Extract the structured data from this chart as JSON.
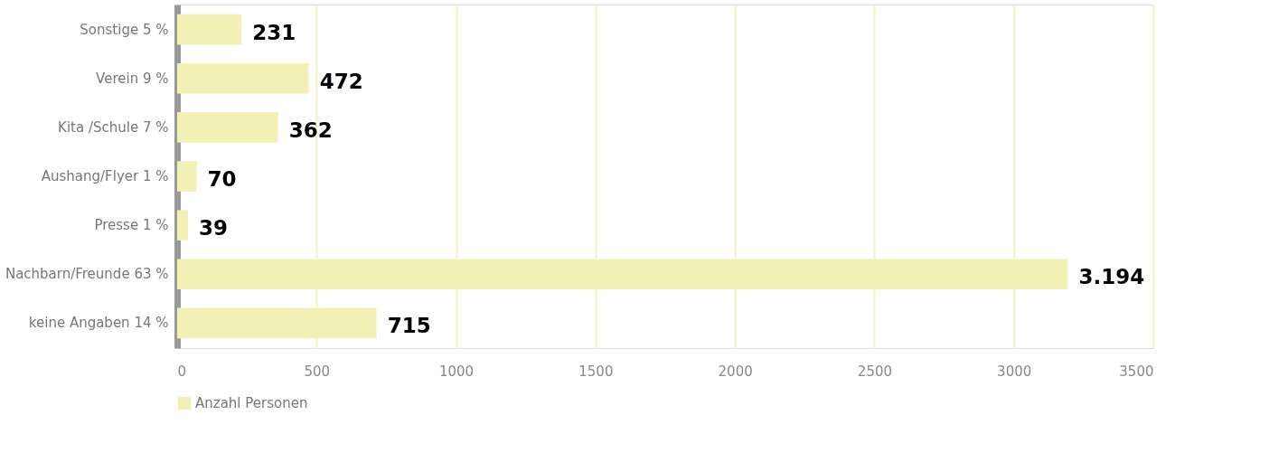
{
  "chart_data": {
    "type": "bar",
    "orientation": "horizontal",
    "categories": [
      "Sonstige 5 %",
      "Verein 9 %",
      "Kita /Schule 7 %",
      "Aushang/Flyer 1 %",
      "Presse 1 %",
      "Nachbarn/Freunde 63 %",
      "keine Angaben 14 %"
    ],
    "series": [
      {
        "name": "Anzahl Personen",
        "color": "#f2f0b5",
        "values": [
          231,
          472,
          362,
          70,
          39,
          3194,
          715
        ],
        "value_labels": [
          "231",
          "472",
          "362",
          "70",
          "39",
          "3.194",
          "715"
        ]
      }
    ],
    "xlim": [
      0,
      3500
    ],
    "xticks": [
      0,
      500,
      1000,
      1500,
      2000,
      2500,
      3000,
      3500
    ],
    "grid": "x",
    "legend": "bottom"
  }
}
